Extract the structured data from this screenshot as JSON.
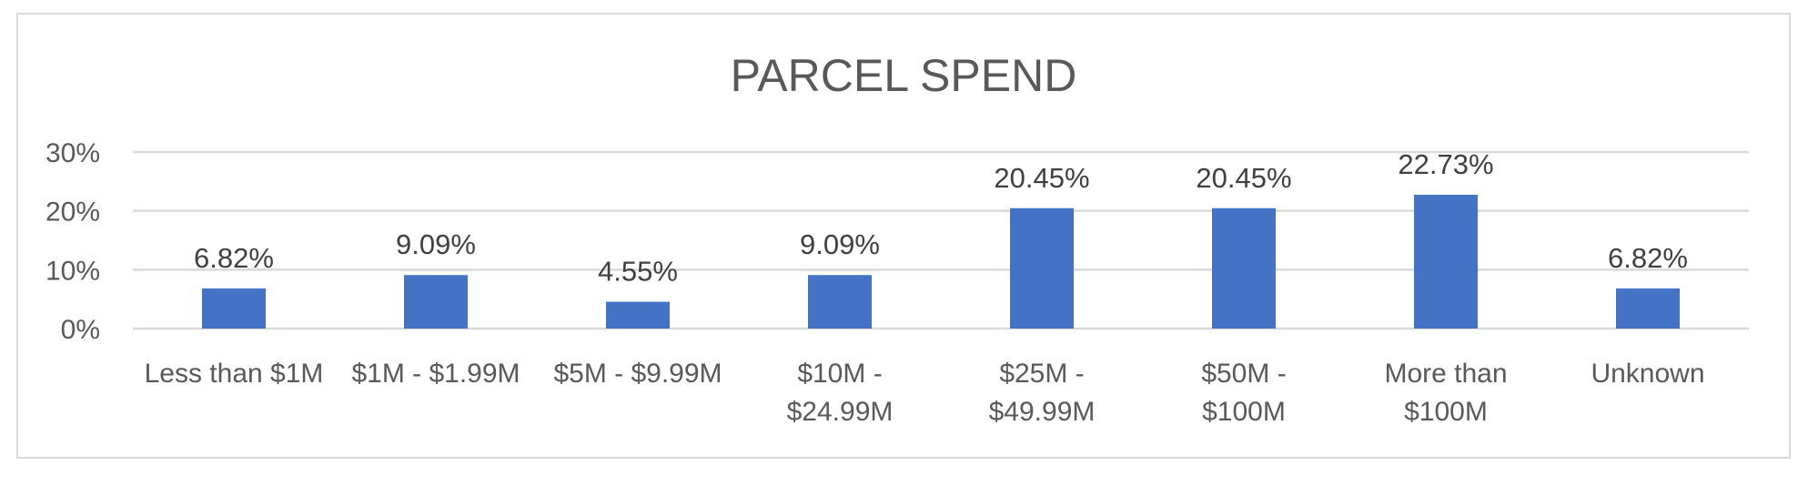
{
  "chart_data": {
    "type": "bar",
    "title": "PARCEL SPEND",
    "xlabel": "",
    "ylabel": "",
    "categories": [
      [
        "Less than $1M"
      ],
      [
        "$1M - $1.99M"
      ],
      [
        "$5M - $9.99M"
      ],
      [
        "$10M -",
        "$24.99M"
      ],
      [
        "$25M -",
        "$49.99M"
      ],
      [
        "$50M -",
        "$100M"
      ],
      [
        "More than",
        "$100M"
      ],
      [
        "Unknown"
      ]
    ],
    "values": [
      6.82,
      9.09,
      4.55,
      9.09,
      20.45,
      20.45,
      22.73,
      6.82
    ],
    "data_labels": [
      "6.82%",
      "9.09%",
      "4.55%",
      "9.09%",
      "20.45%",
      "20.45%",
      "22.73%",
      "6.82%"
    ],
    "ylim": [
      0,
      30
    ],
    "yticks": [
      0,
      10,
      20,
      30
    ],
    "ytick_labels": [
      "0%",
      "10%",
      "20%",
      "30%"
    ],
    "grid": true,
    "legend": "none",
    "bar_color": "#4472c4"
  }
}
